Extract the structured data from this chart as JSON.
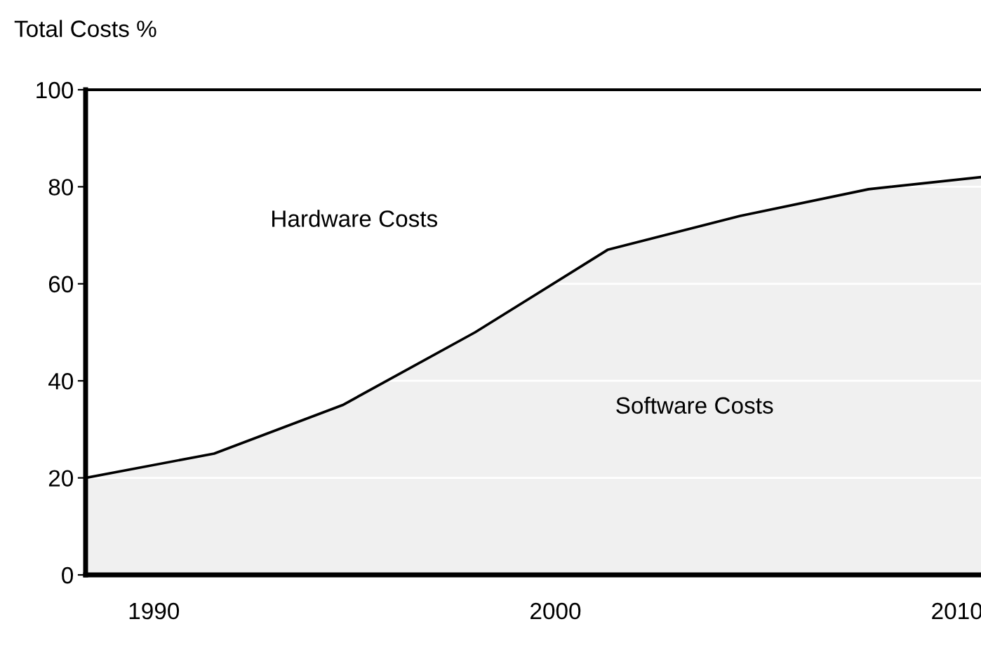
{
  "chart_data": {
    "type": "area",
    "ylabel": "Total Costs %",
    "x": [
      1988.3,
      1991.5,
      1994.7,
      1998.0,
      2001.3,
      2004.6,
      2007.8,
      2010.6
    ],
    "series": [
      {
        "color": "#f0f0f0",
        "values": [
          20,
          25,
          35,
          50,
          67,
          74,
          79.5,
          82
        ]
      }
    ],
    "xlim": [
      1988.3,
      2010.6
    ],
    "xticks": [
      1990,
      2000,
      2010
    ],
    "ylim": [
      0,
      100
    ],
    "yticks": [
      0,
      20,
      40,
      60,
      80,
      100
    ],
    "grid": "y",
    "marker": "none",
    "line_style": "solid",
    "annotations": [
      "Hardware Costs",
      "Software Costs"
    ]
  }
}
